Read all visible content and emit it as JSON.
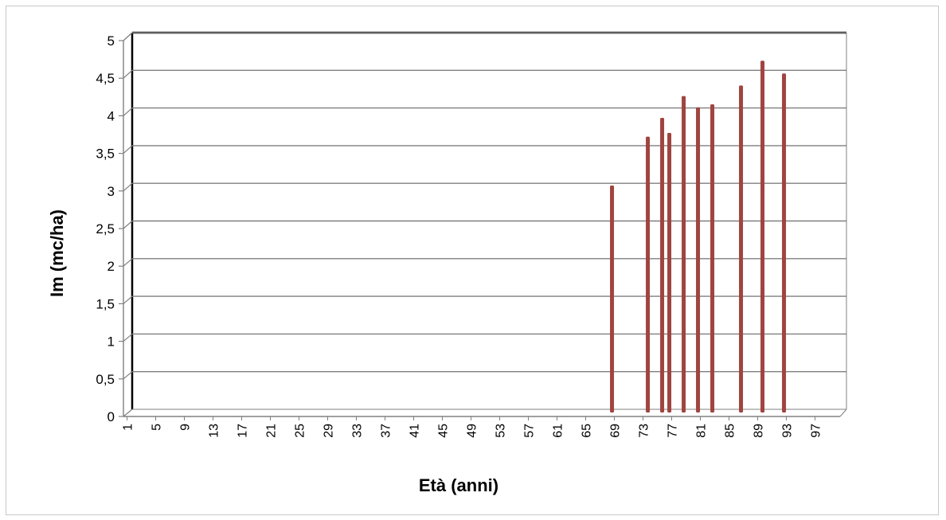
{
  "chart_data": {
    "type": "bar",
    "title": "",
    "xlabel": "Età (anni)",
    "ylabel": "Im (mc/ha)",
    "ylim": [
      0,
      5
    ],
    "y_ticks": [
      "0",
      "0,5",
      "1",
      "1,5",
      "2",
      "2,5",
      "3",
      "3,5",
      "4",
      "4,5",
      "5"
    ],
    "x_range": [
      1,
      100
    ],
    "x_ticks": [
      "1",
      "5",
      "9",
      "13",
      "17",
      "21",
      "25",
      "29",
      "33",
      "37",
      "41",
      "45",
      "49",
      "53",
      "57",
      "61",
      "65",
      "69",
      "73",
      "77",
      "81",
      "85",
      "89",
      "93",
      "97"
    ],
    "grid": true,
    "series": [
      {
        "color": "#a0443f",
        "points": [
          {
            "x": 68,
            "y": 3.02
          },
          {
            "x": 73,
            "y": 3.67
          },
          {
            "x": 75,
            "y": 3.92
          },
          {
            "x": 76,
            "y": 3.72
          },
          {
            "x": 78,
            "y": 4.21
          },
          {
            "x": 80,
            "y": 4.06
          },
          {
            "x": 82,
            "y": 4.1
          },
          {
            "x": 86,
            "y": 4.35
          },
          {
            "x": 89,
            "y": 4.68
          },
          {
            "x": 92,
            "y": 4.51
          }
        ]
      }
    ]
  }
}
